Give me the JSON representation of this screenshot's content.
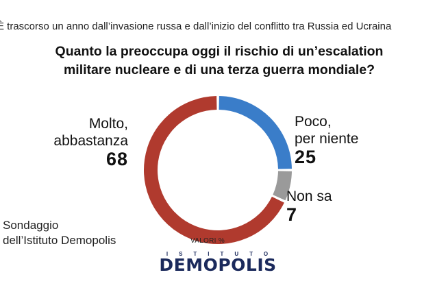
{
  "header": {
    "subtitle": "È trascorso un anno dall’invasione russa e dall’inizio del conflitto tra Russia ed Ucraina",
    "question_line1": "Quanto la preoccupa oggi il rischio di un’escalation",
    "question_line2": "militare nucleare e di una terza guerra mondiale?"
  },
  "chart_data": {
    "type": "pie",
    "donut": true,
    "categories": [
      "Molto, abbastanza",
      "Poco, per niente",
      "Non sa"
    ],
    "values": [
      68,
      25,
      7
    ],
    "colors": [
      "#b03a2e",
      "#3a7dc9",
      "#9a9a9a"
    ],
    "labels": [
      {
        "line1": "Molto,",
        "line2": "abbastanza",
        "value": "68"
      },
      {
        "line1": "Poco,",
        "line2": "per niente",
        "value": "25"
      },
      {
        "line1": "Non sa",
        "value": "7"
      }
    ],
    "units_note": "VALORI %"
  },
  "footer": {
    "source_line1": "Sondaggio",
    "source_line2": "dell’Istituto Demopolis",
    "logo_top": "ISTITUTO",
    "logo_main": "DEMOPOLIS"
  }
}
